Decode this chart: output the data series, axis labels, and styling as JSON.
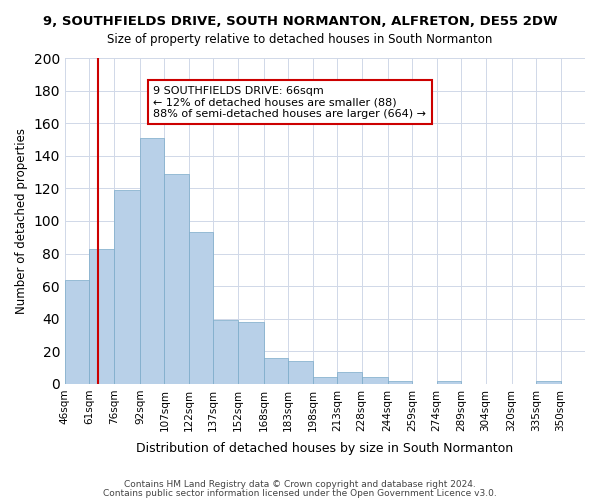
{
  "title": "9, SOUTHFIELDS DRIVE, SOUTH NORMANTON, ALFRETON, DE55 2DW",
  "subtitle": "Size of property relative to detached houses in South Normanton",
  "xlabel": "Distribution of detached houses by size in South Normanton",
  "ylabel": "Number of detached properties",
  "bar_values": [
    64,
    83,
    119,
    151,
    129,
    93,
    39,
    38,
    16,
    14,
    4,
    7,
    4,
    2,
    0,
    2,
    0,
    0,
    0,
    2
  ],
  "bin_labels": [
    "46sqm",
    "61sqm",
    "76sqm",
    "92sqm",
    "107sqm",
    "122sqm",
    "137sqm",
    "152sqm",
    "168sqm",
    "183sqm",
    "198sqm",
    "213sqm",
    "228sqm",
    "244sqm",
    "259sqm",
    "274sqm",
    "289sqm",
    "304sqm",
    "320sqm",
    "335sqm",
    "350sqm"
  ],
  "bin_edges": [
    46,
    61,
    76,
    92,
    107,
    122,
    137,
    152,
    168,
    183,
    198,
    213,
    228,
    244,
    259,
    274,
    289,
    304,
    320,
    335,
    350
  ],
  "bar_color": "#b8d0e8",
  "bar_edge_color": "#7aaac8",
  "vline_x": 66,
  "vline_color": "#cc0000",
  "ylim": [
    0,
    200
  ],
  "yticks": [
    0,
    20,
    40,
    60,
    80,
    100,
    120,
    140,
    160,
    180,
    200
  ],
  "annotation_title": "9 SOUTHFIELDS DRIVE: 66sqm",
  "annotation_line1": "← 12% of detached houses are smaller (88)",
  "annotation_line2": "88% of semi-detached houses are larger (664) →",
  "annotation_box_color": "#ffffff",
  "annotation_box_edge": "#cc0000",
  "footer1": "Contains HM Land Registry data © Crown copyright and database right 2024.",
  "footer2": "Contains public sector information licensed under the Open Government Licence v3.0.",
  "background_color": "#ffffff",
  "grid_color": "#d0d8e8"
}
